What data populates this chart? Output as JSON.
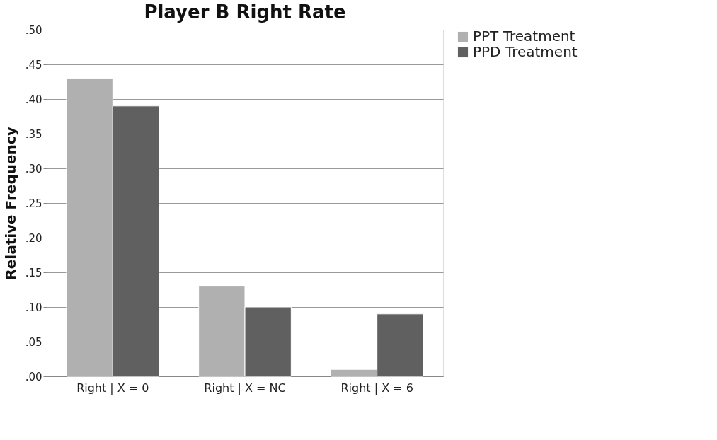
{
  "chart_data": {
    "type": "bar",
    "title": "Player B Right Rate",
    "ylabel": "Relative Frequency",
    "categories": [
      "Right | X = 0",
      "Right | X = NC",
      "Right | X = 6"
    ],
    "series": [
      {
        "name": "PPT Treatment",
        "color": "#b0b0b0",
        "values": [
          0.43,
          0.13,
          0.01
        ]
      },
      {
        "name": "PPD Treatment",
        "color": "#606060",
        "values": [
          0.39,
          0.1,
          0.09
        ]
      }
    ],
    "ylim": [
      0,
      0.5
    ],
    "yticks": [
      {
        "value": 0,
        "label": ".00"
      },
      {
        "value": 0.05,
        "label": ".05"
      },
      {
        "value": 0.1,
        "label": ".10"
      },
      {
        "value": 0.15,
        "label": ".15"
      },
      {
        "value": 0.2,
        "label": ".20"
      },
      {
        "value": 0.25,
        "label": ".25"
      },
      {
        "value": 0.3,
        "label": ".30"
      },
      {
        "value": 0.35,
        "label": ".35"
      },
      {
        "value": 0.4,
        "label": ".40"
      },
      {
        "value": 0.45,
        "label": ".45"
      },
      {
        "value": 0.5,
        "label": ".50"
      }
    ],
    "grid": "y",
    "legend": "right"
  }
}
